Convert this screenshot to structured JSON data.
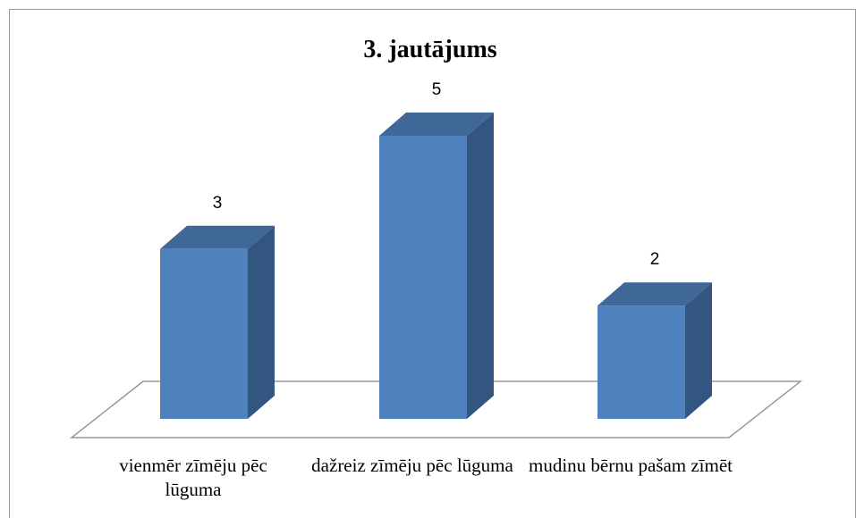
{
  "chart_data": {
    "type": "bar3d",
    "title": "3. jautājums",
    "categories": [
      "vienmēr zīmēju pēc lūguma",
      "dažreiz zīmēju pēc lūguma",
      "mudinu bērnu pašam zīmēt"
    ],
    "values": [
      3,
      5,
      2
    ],
    "color": "#4f81bd"
  }
}
